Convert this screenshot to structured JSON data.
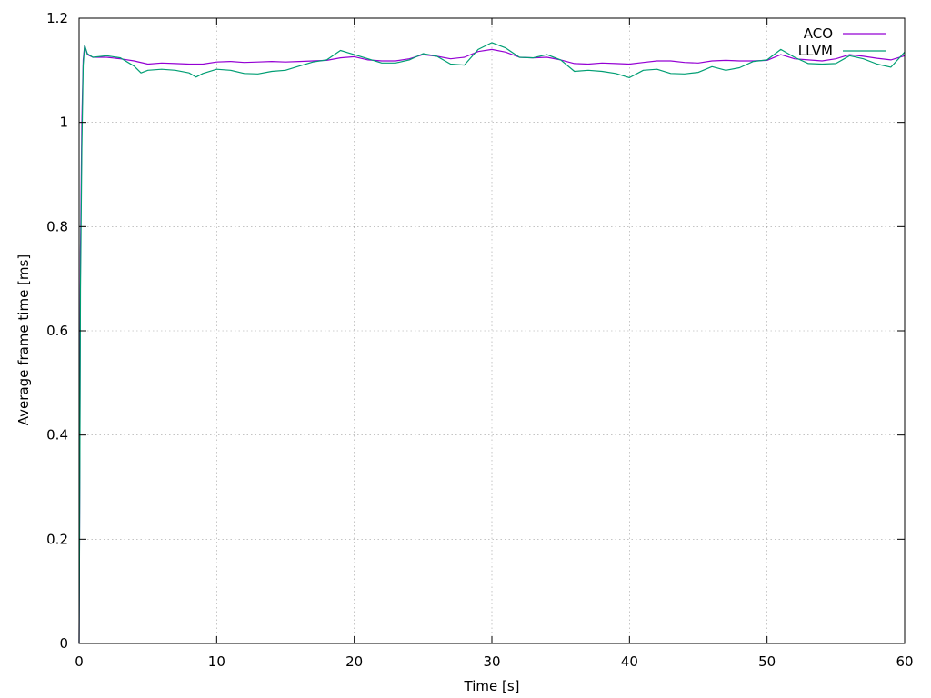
{
  "chart_data": {
    "type": "line",
    "title": "",
    "xlabel": "Time [s]",
    "ylabel": "Average frame time [ms]",
    "xlim": [
      0,
      60
    ],
    "ylim": [
      0,
      1.2
    ],
    "xticks": [
      0,
      10,
      20,
      30,
      40,
      50,
      60
    ],
    "yticks": [
      0,
      0.2,
      0.4,
      0.6,
      0.8,
      1,
      1.2
    ],
    "xtick_labels": [
      "0",
      "10",
      "20",
      "30",
      "40",
      "50",
      "60"
    ],
    "ytick_labels": [
      "0",
      "0.2",
      "0.4",
      "0.6",
      "0.8",
      "1",
      "1.2"
    ],
    "grid": true,
    "legend_position": "top-right",
    "series": [
      {
        "name": "ACO",
        "color": "#9400d3",
        "x": [
          0,
          0.05,
          0.1,
          0.2,
          0.3,
          0.4,
          0.6,
          1,
          2,
          3,
          4,
          5,
          6,
          7,
          8,
          9,
          10,
          11,
          12,
          13,
          14,
          15,
          16,
          17,
          18,
          19,
          20,
          21,
          22,
          23,
          24,
          25,
          26,
          27,
          28,
          29,
          30,
          31,
          32,
          33,
          34,
          35,
          36,
          37,
          38,
          39,
          40,
          41,
          42,
          43,
          44,
          45,
          46,
          47,
          48,
          49,
          50,
          51,
          52,
          53,
          54,
          55,
          56,
          57,
          58,
          59,
          60
        ],
        "y": [
          0,
          0.35,
          0.75,
          1.0,
          1.12,
          1.148,
          1.13,
          1.125,
          1.125,
          1.122,
          1.118,
          1.112,
          1.114,
          1.113,
          1.112,
          1.112,
          1.116,
          1.117,
          1.115,
          1.116,
          1.117,
          1.116,
          1.117,
          1.118,
          1.119,
          1.124,
          1.126,
          1.12,
          1.118,
          1.118,
          1.122,
          1.13,
          1.127,
          1.122,
          1.125,
          1.136,
          1.14,
          1.135,
          1.125,
          1.124,
          1.125,
          1.12,
          1.113,
          1.112,
          1.114,
          1.113,
          1.112,
          1.115,
          1.118,
          1.118,
          1.115,
          1.114,
          1.118,
          1.119,
          1.118,
          1.118,
          1.119,
          1.13,
          1.122,
          1.12,
          1.118,
          1.122,
          1.13,
          1.127,
          1.123,
          1.12,
          1.128
        ]
      },
      {
        "name": "LLVM",
        "color": "#009e73",
        "x": [
          0,
          0.05,
          0.1,
          0.2,
          0.3,
          0.4,
          0.6,
          1,
          2,
          3,
          4,
          4.5,
          5,
          6,
          7,
          8,
          8.5,
          9,
          10,
          11,
          12,
          13,
          14,
          15,
          16,
          17,
          18,
          19,
          20,
          21,
          22,
          23,
          24,
          25,
          26,
          27,
          28,
          29,
          30,
          31,
          32,
          33,
          34,
          35,
          36,
          37,
          38,
          39,
          40,
          41,
          42,
          43,
          44,
          45,
          46,
          47,
          48,
          49,
          50,
          51,
          52,
          53,
          54,
          55,
          56,
          57,
          58,
          59,
          60
        ],
        "y": [
          0,
          0.32,
          0.68,
          0.95,
          1.11,
          1.148,
          1.132,
          1.125,
          1.128,
          1.124,
          1.108,
          1.095,
          1.1,
          1.102,
          1.1,
          1.095,
          1.087,
          1.094,
          1.102,
          1.1,
          1.094,
          1.093,
          1.098,
          1.1,
          1.108,
          1.116,
          1.12,
          1.138,
          1.13,
          1.122,
          1.114,
          1.114,
          1.12,
          1.132,
          1.127,
          1.112,
          1.11,
          1.14,
          1.153,
          1.143,
          1.125,
          1.124,
          1.13,
          1.12,
          1.098,
          1.1,
          1.098,
          1.094,
          1.086,
          1.1,
          1.102,
          1.094,
          1.093,
          1.096,
          1.107,
          1.1,
          1.105,
          1.117,
          1.12,
          1.14,
          1.125,
          1.113,
          1.112,
          1.113,
          1.128,
          1.122,
          1.112,
          1.106,
          1.135
        ]
      }
    ]
  }
}
